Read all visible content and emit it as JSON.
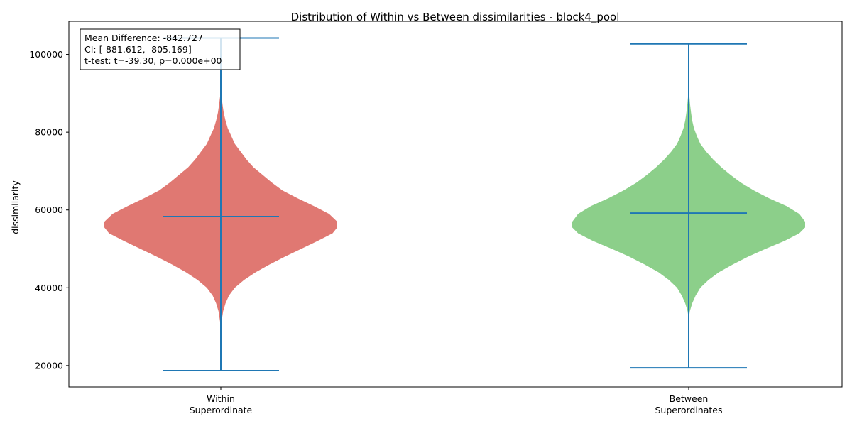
{
  "chart_data": {
    "type": "violin",
    "title": "Distribution of Within vs Between dissimilarities - block4_pool",
    "ylabel": "dissimilarity",
    "xlabel": "",
    "ylim": [
      14500,
      108500
    ],
    "yticks": [
      20000,
      40000,
      60000,
      80000,
      100000
    ],
    "ytick_labels": [
      "20000",
      "40000",
      "60000",
      "80000",
      "100000"
    ],
    "grid": false,
    "categories": [
      {
        "line1": "Within",
        "line2": "Superordinate"
      },
      {
        "line1": "Between",
        "line2": "Superordinates"
      }
    ],
    "series": [
      {
        "fill_color": "#e07872",
        "min": 18700,
        "max": 104200,
        "mean": 58300,
        "kde_low": 30000,
        "kde_high": 91000,
        "density": [
          [
            30000,
            0.0
          ],
          [
            32000,
            0.01
          ],
          [
            34000,
            0.02
          ],
          [
            36000,
            0.04
          ],
          [
            38000,
            0.07
          ],
          [
            40000,
            0.12
          ],
          [
            42000,
            0.2
          ],
          [
            44000,
            0.3
          ],
          [
            46000,
            0.42
          ],
          [
            48000,
            0.55
          ],
          [
            50000,
            0.69
          ],
          [
            52000,
            0.83
          ],
          [
            54000,
            0.96
          ],
          [
            55500,
            1.0
          ],
          [
            57000,
            1.0
          ],
          [
            59000,
            0.93
          ],
          [
            61000,
            0.8
          ],
          [
            63000,
            0.66
          ],
          [
            65000,
            0.53
          ],
          [
            67000,
            0.44
          ],
          [
            69000,
            0.36
          ],
          [
            71000,
            0.28
          ],
          [
            73000,
            0.22
          ],
          [
            75000,
            0.17
          ],
          [
            77000,
            0.12
          ],
          [
            79000,
            0.09
          ],
          [
            81000,
            0.06
          ],
          [
            83000,
            0.04
          ],
          [
            85000,
            0.025
          ],
          [
            87000,
            0.015
          ],
          [
            89000,
            0.007
          ],
          [
            91000,
            0.0
          ]
        ]
      },
      {
        "fill_color": "#8ccf8a",
        "min": 19400,
        "max": 102700,
        "mean": 59200,
        "kde_low": 32000,
        "kde_high": 90500,
        "density": [
          [
            32000,
            0.0
          ],
          [
            34000,
            0.01
          ],
          [
            36000,
            0.03
          ],
          [
            38000,
            0.06
          ],
          [
            40000,
            0.1
          ],
          [
            42000,
            0.17
          ],
          [
            44000,
            0.26
          ],
          [
            46000,
            0.38
          ],
          [
            48000,
            0.51
          ],
          [
            50000,
            0.66
          ],
          [
            52000,
            0.82
          ],
          [
            54000,
            0.95
          ],
          [
            55500,
            1.0
          ],
          [
            57000,
            1.0
          ],
          [
            59000,
            0.95
          ],
          [
            61000,
            0.84
          ],
          [
            63000,
            0.69
          ],
          [
            65000,
            0.56
          ],
          [
            67000,
            0.45
          ],
          [
            69000,
            0.36
          ],
          [
            71000,
            0.28
          ],
          [
            73000,
            0.21
          ],
          [
            75000,
            0.15
          ],
          [
            77000,
            0.1
          ],
          [
            79000,
            0.07
          ],
          [
            81000,
            0.045
          ],
          [
            83000,
            0.03
          ],
          [
            85000,
            0.02
          ],
          [
            87000,
            0.012
          ],
          [
            89000,
            0.006
          ],
          [
            90500,
            0.0
          ]
        ]
      }
    ],
    "marker_color": "#1f77b4",
    "annotation": {
      "line1": "Mean Difference: -842.727",
      "line2": "CI: [-881.612, -805.169]",
      "line3": "t-test: t=-39.30, p=0.000e+00",
      "position": "top-left"
    }
  }
}
